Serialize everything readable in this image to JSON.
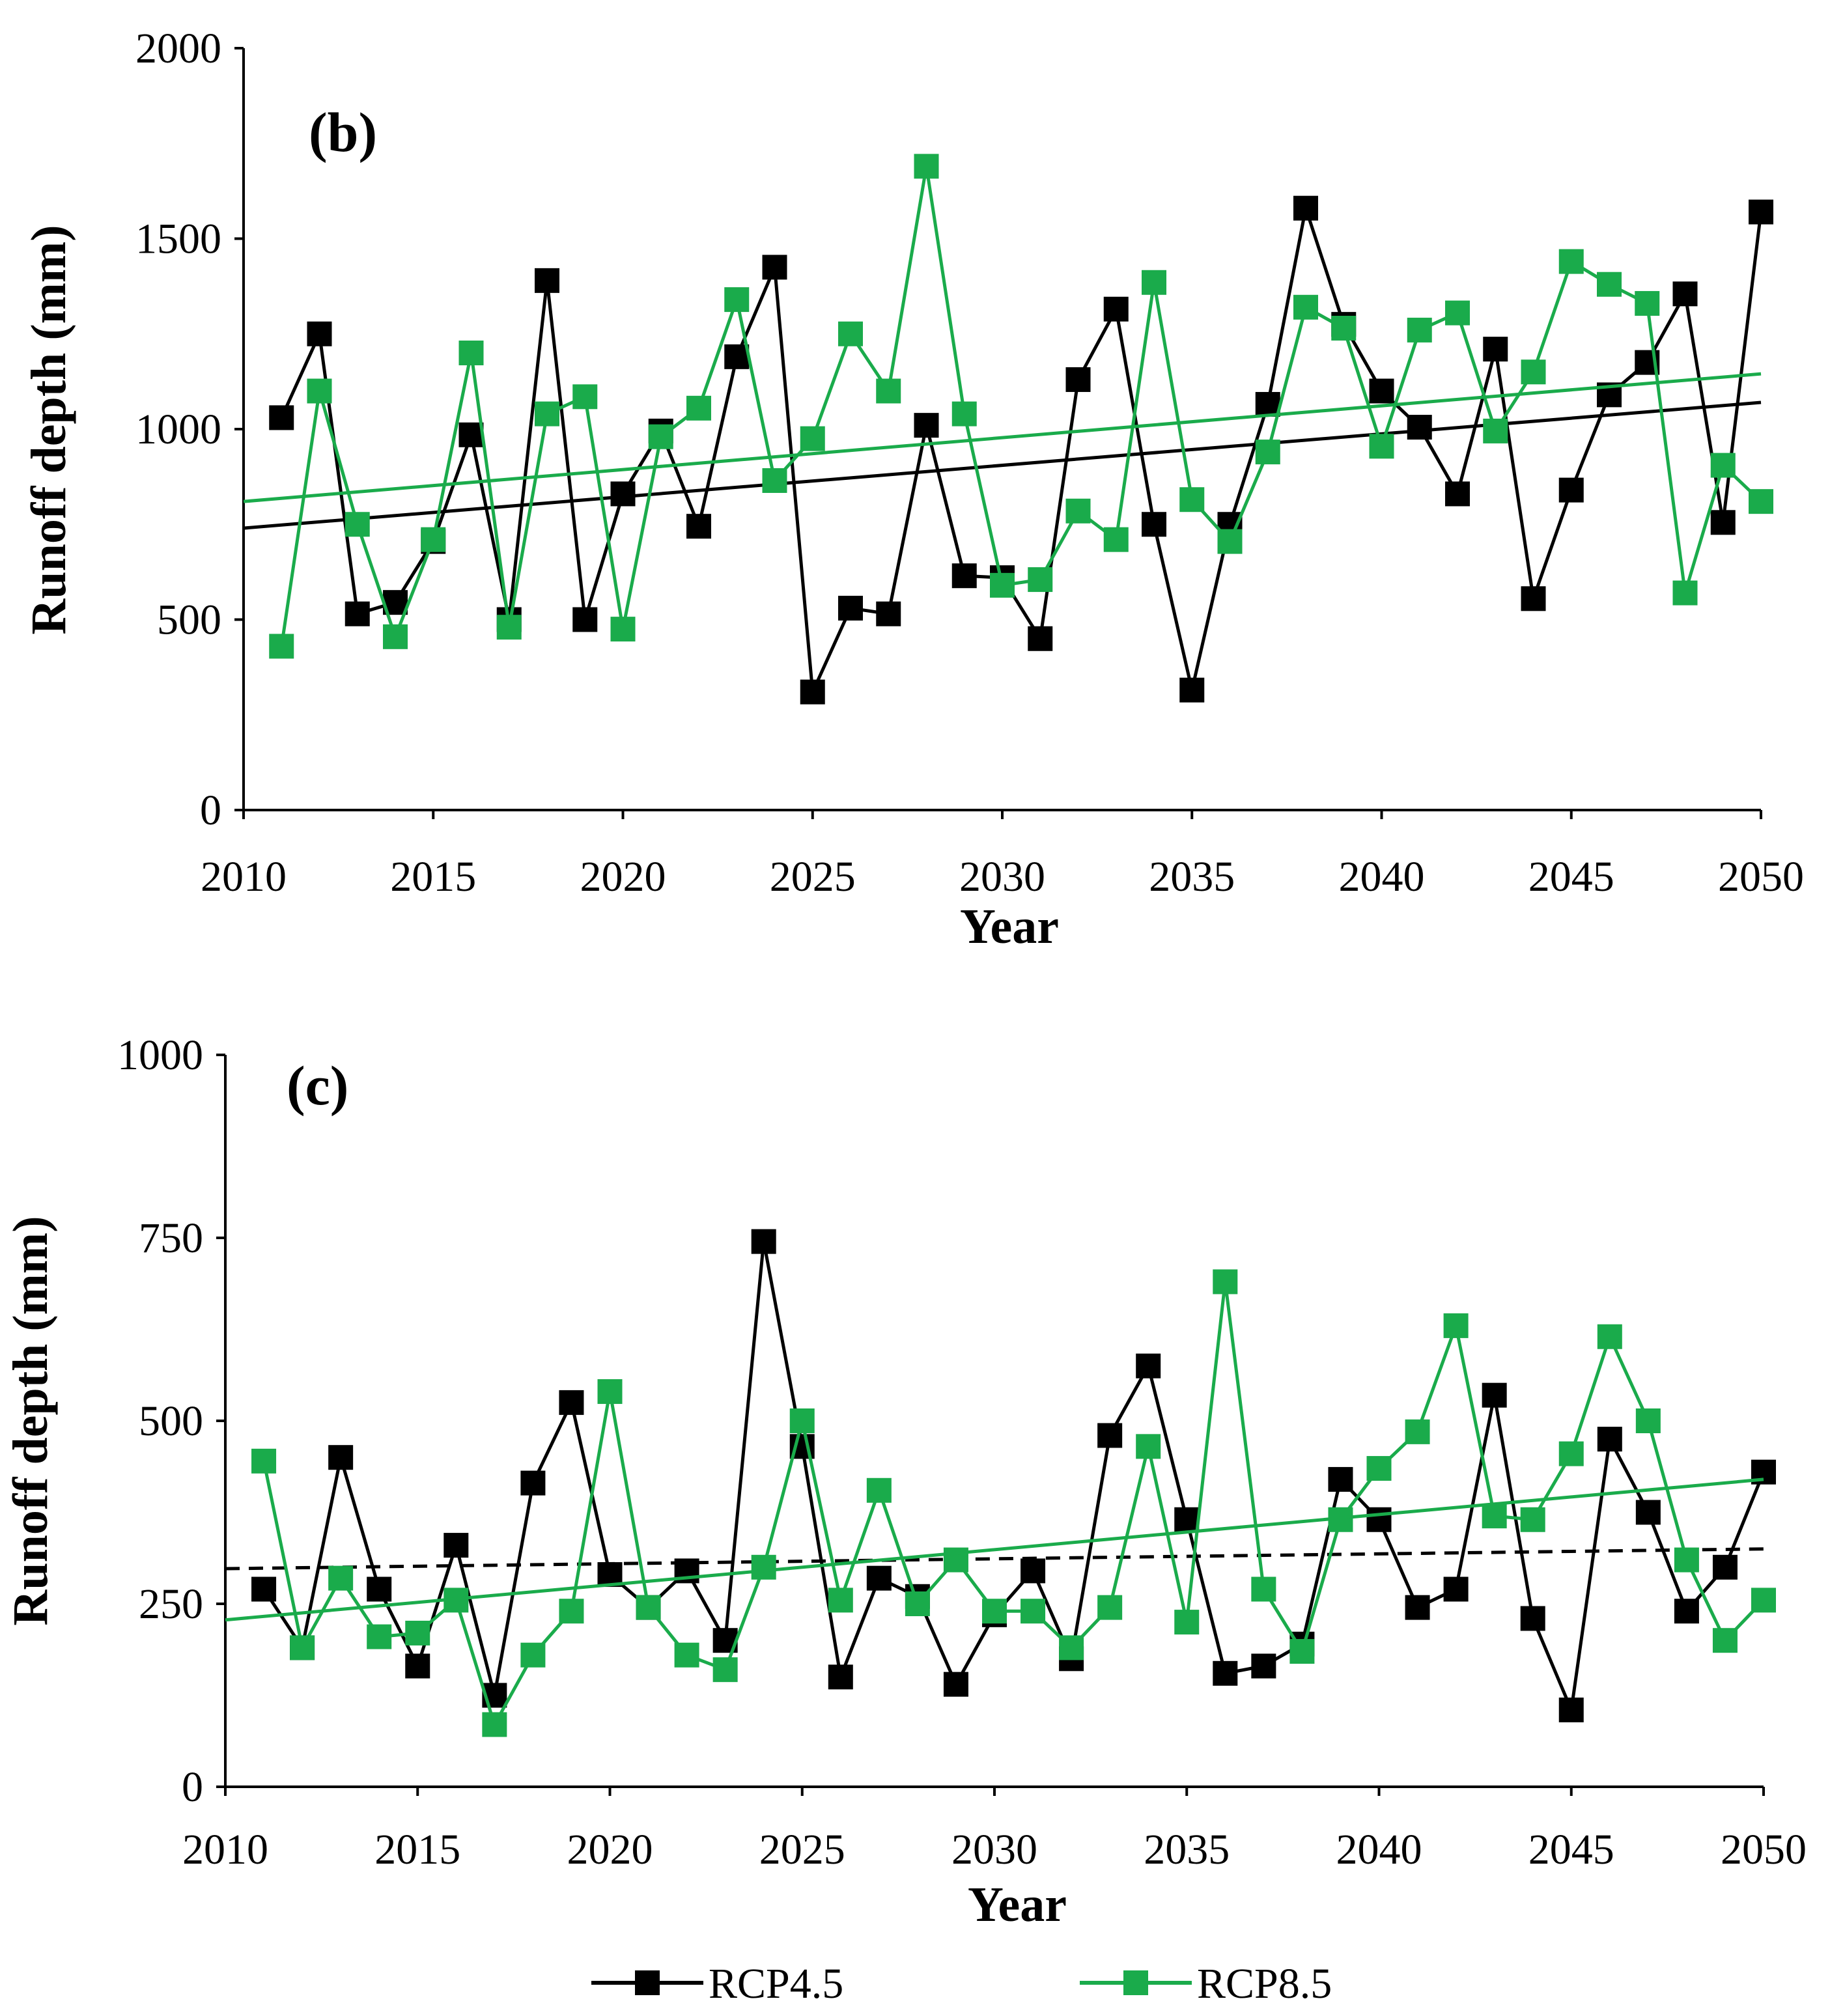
{
  "colors": {
    "rcp45": "#000000",
    "rcp85": "#1aab4b"
  },
  "legend": {
    "rcp45": "RCP4.5",
    "rcp85": "RCP8.5"
  },
  "chart_data": [
    {
      "type": "line",
      "panel_label": "(b)",
      "xlabel": "Year",
      "ylabel": "Runoff depth (mm)",
      "xlim": [
        2010,
        2050
      ],
      "ylim": [
        0,
        2000
      ],
      "xticks": [
        2010,
        2015,
        2020,
        2025,
        2030,
        2035,
        2040,
        2045,
        2050
      ],
      "yticks": [
        0,
        500,
        1000,
        1500,
        2000
      ],
      "x": [
        2011,
        2012,
        2013,
        2014,
        2015,
        2016,
        2017,
        2018,
        2019,
        2020,
        2021,
        2022,
        2023,
        2024,
        2025,
        2026,
        2027,
        2028,
        2029,
        2030,
        2031,
        2032,
        2033,
        2034,
        2035,
        2036,
        2037,
        2038,
        2039,
        2040,
        2041,
        2042,
        2043,
        2044,
        2045,
        2046,
        2047,
        2048,
        2049,
        2050
      ],
      "series": [
        {
          "name": "RCP4.5",
          "values": [
            1030,
            1250,
            515,
            545,
            705,
            985,
            500,
            1390,
            500,
            830,
            995,
            745,
            1190,
            1425,
            310,
            530,
            515,
            1010,
            615,
            610,
            450,
            1130,
            1315,
            750,
            315,
            750,
            1065,
            1580,
            1275,
            1100,
            1005,
            830,
            1210,
            555,
            840,
            1090,
            1175,
            1355,
            755,
            1570
          ],
          "trend": {
            "dashed": false,
            "start": [
              2010,
              740
            ],
            "end": [
              2050,
              1070
            ]
          }
        },
        {
          "name": "RCP8.5",
          "values": [
            430,
            1100,
            750,
            455,
            710,
            1200,
            480,
            1040,
            1085,
            475,
            980,
            1055,
            1340,
            865,
            975,
            1250,
            1100,
            1690,
            1040,
            590,
            605,
            785,
            710,
            1385,
            815,
            705,
            940,
            1320,
            1265,
            955,
            1260,
            1305,
            995,
            1150,
            1440,
            1380,
            1330,
            570,
            905,
            810
          ],
          "trend": {
            "dashed": false,
            "start": [
              2010,
              810
            ],
            "end": [
              2050,
              1145
            ]
          }
        }
      ]
    },
    {
      "type": "line",
      "panel_label": "(c)",
      "xlabel": "Year",
      "ylabel": "Runoff depth (mm)",
      "xlim": [
        2010,
        2050
      ],
      "ylim": [
        0,
        1000
      ],
      "xticks": [
        2010,
        2015,
        2020,
        2025,
        2030,
        2035,
        2040,
        2045,
        2050
      ],
      "yticks": [
        0,
        250,
        500,
        750,
        1000
      ],
      "x": [
        2011,
        2012,
        2013,
        2014,
        2015,
        2016,
        2017,
        2018,
        2019,
        2020,
        2021,
        2022,
        2023,
        2024,
        2025,
        2026,
        2027,
        2028,
        2029,
        2030,
        2031,
        2032,
        2033,
        2034,
        2035,
        2036,
        2037,
        2038,
        2039,
        2040,
        2041,
        2042,
        2043,
        2044,
        2045,
        2046,
        2047,
        2048,
        2049,
        2050
      ],
      "series": [
        {
          "name": "RCP4.5",
          "values": [
            270,
            190,
            450,
            270,
            165,
            330,
            125,
            415,
            525,
            290,
            245,
            295,
            200,
            745,
            465,
            150,
            285,
            260,
            140,
            235,
            295,
            175,
            480,
            575,
            365,
            155,
            165,
            195,
            420,
            365,
            245,
            270,
            535,
            230,
            105,
            475,
            375,
            240,
            300,
            430
          ],
          "trend": {
            "dashed": true,
            "start": [
              2010,
              298
            ],
            "end": [
              2050,
              325
            ]
          }
        },
        {
          "name": "RCP8.5",
          "values": [
            445,
            190,
            285,
            205,
            210,
            255,
            85,
            180,
            240,
            540,
            245,
            180,
            160,
            300,
            500,
            255,
            405,
            250,
            310,
            240,
            240,
            190,
            245,
            465,
            225,
            690,
            270,
            185,
            365,
            435,
            485,
            630,
            370,
            365,
            455,
            615,
            500,
            310,
            200,
            255
          ],
          "trend": {
            "dashed": false,
            "start": [
              2010,
              228
            ],
            "end": [
              2050,
              420
            ]
          }
        }
      ]
    }
  ]
}
